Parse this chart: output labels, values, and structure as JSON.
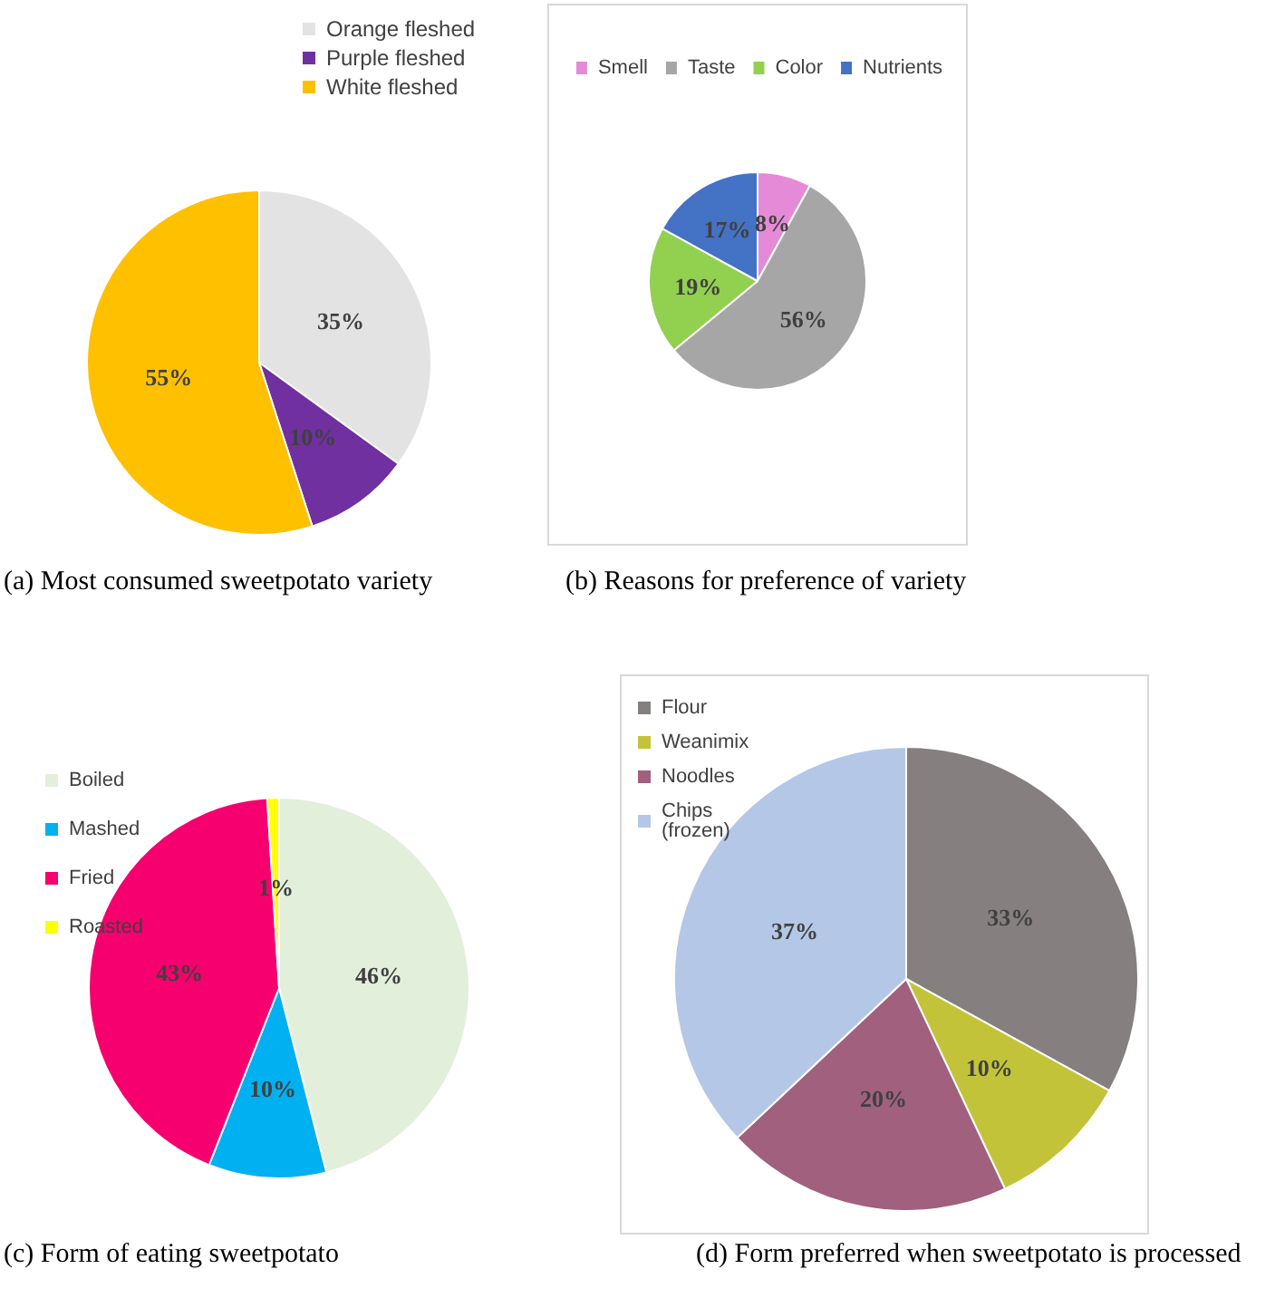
{
  "chart_data": [
    {
      "type": "pie",
      "title": "(a) Most consumed sweetpotato variety",
      "categories": [
        "Orange fleshed",
        "Purple fleshed",
        "White fleshed"
      ],
      "values": [
        35,
        10,
        55
      ],
      "colors": [
        "#e3e3e3",
        "#7030a0",
        "#ffc000"
      ],
      "value_labels": [
        "35%",
        "10%",
        "55%"
      ],
      "legend": "top"
    },
    {
      "type": "pie",
      "title": "(b) Reasons for preference of variety",
      "categories": [
        "Smell",
        "Taste",
        "Color",
        "Nutrients"
      ],
      "values": [
        8,
        56,
        19,
        17
      ],
      "colors": [
        "#e58ad6",
        "#a6a6a6",
        "#92d050",
        "#4472c4"
      ],
      "value_labels": [
        "8%",
        "56%",
        "19%",
        "17%"
      ],
      "legend": "top"
    },
    {
      "type": "pie",
      "title": "(c) Form of eating sweetpotato",
      "categories": [
        "Boiled",
        "Mashed",
        "Fried",
        "Roasted"
      ],
      "values": [
        46,
        10,
        43,
        1
      ],
      "colors": [
        "#e2efda",
        "#00b0f0",
        "#f5006e",
        "#ffff00"
      ],
      "value_labels": [
        "46%",
        "10%",
        "43%",
        "1%"
      ],
      "legend": "left"
    },
    {
      "type": "pie",
      "title": "(d) Form preferred when sweetpotato is processed",
      "categories": [
        "Flour",
        "Weanimix",
        "Noodles",
        "Chips\n(frozen)"
      ],
      "values": [
        33,
        10,
        20,
        37
      ],
      "colors": [
        "#857f7f",
        "#c3c33a",
        "#a0607e",
        "#b4c7e7"
      ],
      "value_labels": [
        "33%",
        "10%",
        "20%",
        "37%"
      ],
      "legend": "top left"
    }
  ]
}
